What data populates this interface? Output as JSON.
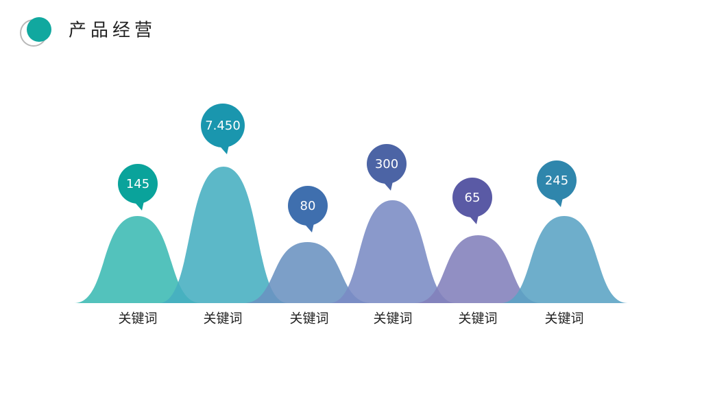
{
  "header": {
    "title": "产品经营"
  },
  "items": [
    {
      "label": "关键词",
      "value": "145"
    },
    {
      "label": "关键词",
      "value": "7.450"
    },
    {
      "label": "关键词",
      "value": "80"
    },
    {
      "label": "关键词",
      "value": "300"
    },
    {
      "label": "关键词",
      "value": "65"
    },
    {
      "label": "关键词",
      "value": "245"
    }
  ]
}
